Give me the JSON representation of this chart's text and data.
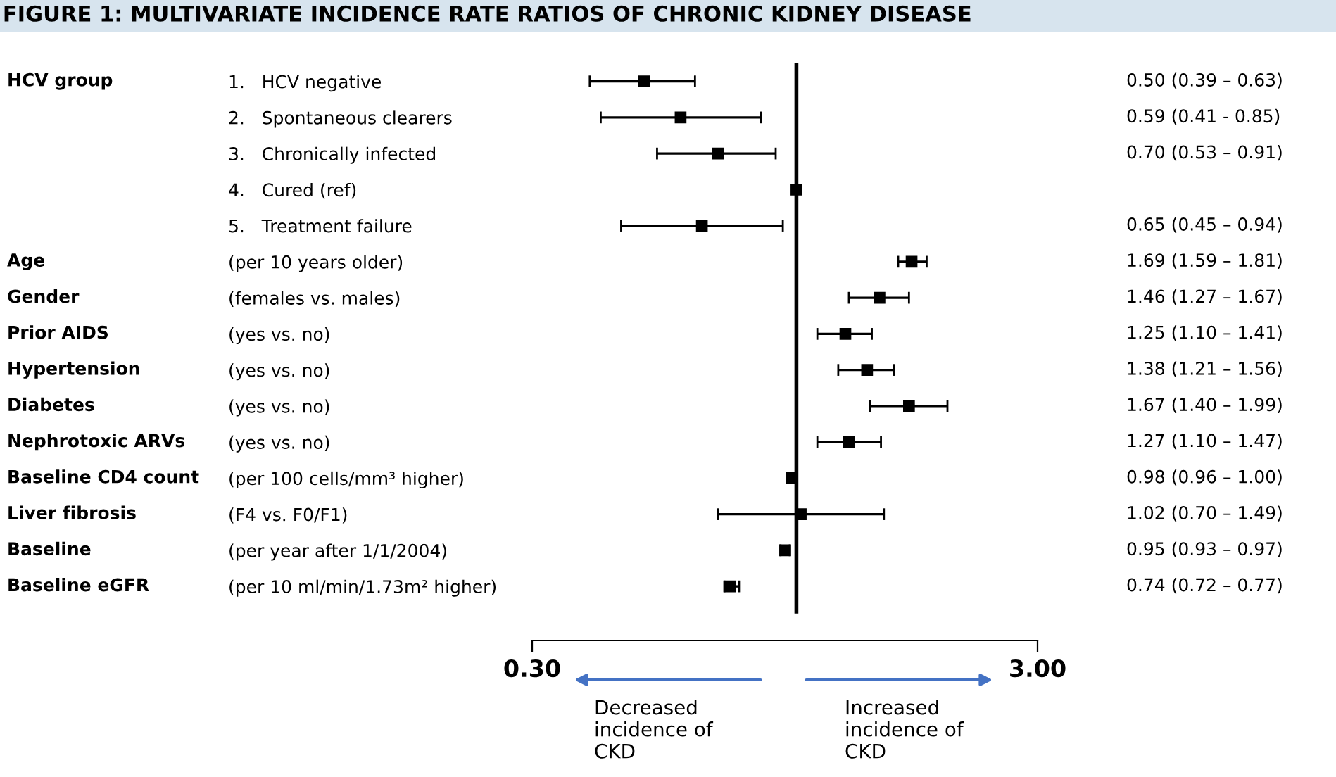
{
  "chart_data": {
    "type": "scatter",
    "orientation": "horizontal",
    "title": "FIGURE 1: MULTIVARIATE INCIDENCE RATE RATIOS OF CHRONIC KIDNEY DISEASE",
    "y2_categories": [
      "HCV group",
      null,
      null,
      null,
      null,
      "Age",
      "Gender",
      "Prior AIDS",
      "Hypertension",
      "Diabetes",
      "Nephrotoxic ARVs",
      "Baseline CD4 count",
      "Liver fibrosis",
      "Baseline",
      "Baseline eGFR"
    ],
    "categories": [
      "1.   HCV negative",
      "2.   Spontaneous clearers",
      "3.   Chronically infected",
      "4.   Cured (ref)",
      "5.   Treatment failure",
      "(per 10 years older)",
      "(females vs. males)",
      "(yes vs. no)",
      "(yes vs. no)",
      "(yes vs. no)",
      "(yes vs. no)",
      "(per 100 cells/mm³ higher)",
      "(F4 vs. F0/F1)",
      "(per year after 1/1/2004)",
      "(per 10 ml/min/1.73m² higher)"
    ],
    "series": [
      {
        "color": "#000000",
        "values": [
          0.5,
          0.59,
          0.7,
          1,
          0.65,
          1.69,
          1.46,
          1.25,
          1.38,
          1.67,
          1.27,
          0.98,
          1.02,
          0.95,
          0.74
        ],
        "errors": [
          [
            0.39,
            0.63
          ],
          [
            0.41,
            0.85
          ],
          [
            0.53,
            0.91
          ],
          null,
          [
            0.45,
            0.94
          ],
          [
            1.59,
            1.81
          ],
          [
            1.27,
            1.67
          ],
          [
            1.1,
            1.41
          ],
          [
            1.21,
            1.56
          ],
          [
            1.4,
            1.99
          ],
          [
            1.1,
            1.47
          ],
          [
            0.96,
            1.0
          ],
          [
            0.7,
            1.49
          ],
          [
            0.93,
            0.97
          ],
          [
            0.72,
            0.77
          ]
        ],
        "value_labels": [
          "0.50 (0.39 – 0.63)",
          "0.59 (0.41 - 0.85)",
          "0.70 (0.53 – 0.91)",
          null,
          "0.65 (0.45 – 0.94)",
          "1.69 (1.59 – 1.81)",
          "1.46 (1.27 – 1.67)",
          "1.25 (1.10 – 1.41)",
          "1.38 (1.21 – 1.56)",
          "1.67 (1.40 – 1.99)",
          "1.27 (1.10 – 1.47)",
          "0.98 (0.96 – 1.00)",
          "1.02 (0.70 – 1.49)",
          "0.95 (0.93 – 0.97)",
          "0.74 (0.72 – 0.77)"
        ]
      }
    ],
    "log": "x",
    "xlim": [
      0.3,
      3.0
    ],
    "xticks": [
      {
        "value": 0.3,
        "label": "0.30"
      },
      {
        "value": 3.0,
        "label": "3.00"
      }
    ],
    "ref_lines": [
      {
        "axis": "x",
        "value": 1,
        "color": "#000000"
      }
    ],
    "marker": "square",
    "grid": false,
    "legend": false,
    "annotations": [
      "Decreased\nincidence of\nCKD",
      "Increased\nincidence of\nCKD"
    ]
  }
}
